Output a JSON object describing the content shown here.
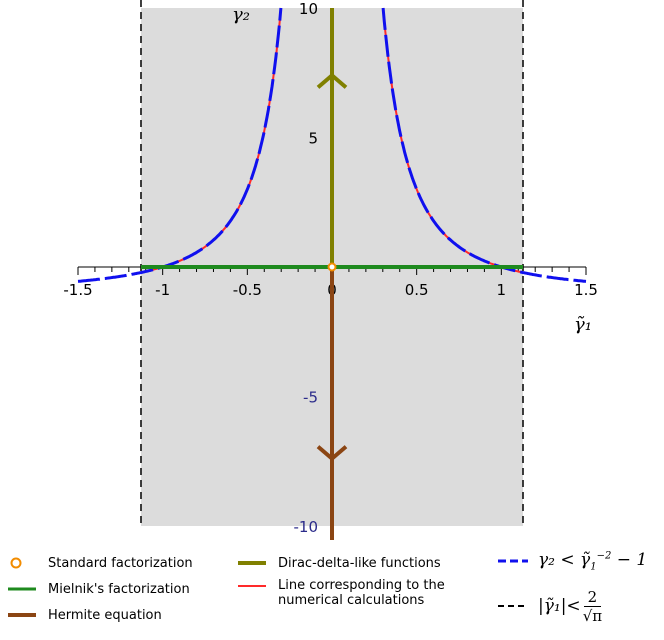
{
  "chart_data": {
    "type": "line",
    "xlim": [
      -1.5,
      1.5
    ],
    "ylim": [
      -10,
      10
    ],
    "xlabel": "γ̃₁",
    "ylabel": "γ₂",
    "xticks": [
      {
        "value": -1.5,
        "label": "-1.5"
      },
      {
        "value": -1,
        "label": "-1"
      },
      {
        "value": -0.5,
        "label": "-0.5"
      },
      {
        "value": 0,
        "label": "0"
      },
      {
        "value": 0.5,
        "label": "0.5"
      },
      {
        "value": 1,
        "label": "1"
      },
      {
        "value": 1.5,
        "label": "1.5"
      }
    ],
    "yticks": [
      {
        "value": 10,
        "label": "10"
      },
      {
        "value": 5,
        "label": "5"
      },
      {
        "value": -5,
        "label": "-5"
      },
      {
        "value": -10,
        "label": "-10"
      }
    ],
    "shaded_region": {
      "x_range": [
        -1.128,
        1.128
      ],
      "y_range": [
        -10,
        10
      ],
      "color": "#dcdcdc"
    },
    "series": [
      {
        "name": "Standard factorization",
        "kind": "point",
        "x": [
          0
        ],
        "y": [
          0
        ],
        "color": "#f28c00"
      },
      {
        "name": "Mielnik's factorization",
        "kind": "segment",
        "x": [
          -1.128,
          1.128
        ],
        "y": [
          0,
          0
        ],
        "color": "#1e8a1e"
      },
      {
        "name": "Hermite equation",
        "kind": "segment",
        "x": [
          0,
          0
        ],
        "y": [
          0,
          -10
        ],
        "arrow_at": -7.4,
        "color": "#8b4513"
      },
      {
        "name": "Dirac-delta-like functions",
        "kind": "segment",
        "x": [
          0,
          0
        ],
        "y": [
          0,
          10
        ],
        "arrow_at": 7.4,
        "color": "#808000"
      },
      {
        "name": "Line corresponding to the numerical calculations",
        "kind": "curve",
        "formula": "1/x^2 - 1",
        "x_range": [
          -1.128,
          1.128
        ],
        "color": "#ff2a2a"
      },
      {
        "name": "γ₂ < γ̃₁⁻² − 1",
        "kind": "curve",
        "formula": "1/x^2 - 1",
        "x_range": [
          -1.5,
          1.5
        ],
        "style": "dashed",
        "color": "#1010ee"
      },
      {
        "name": "|γ̃₁| < 2/√π",
        "kind": "vertical_lines",
        "x": [
          -1.128,
          1.128
        ],
        "style": "dashed",
        "color": "#000000"
      }
    ],
    "grid": false,
    "legend_placement": "bottom"
  },
  "legend": {
    "standard": "Standard factorization",
    "mielnik": "Mielnik's factorization",
    "hermite": "Hermite equation",
    "dirac": "Dirac-delta-like functions",
    "numerical_line1": "Line corresponding to the",
    "numerical_line2": "numerical calculations",
    "gamma2_lhs": "γ₂ < ",
    "gamma1_lhs": "|γ̃₁|< ",
    "gamma1_num": "2",
    "gamma1_den": "√π"
  },
  "colors": {
    "shade": "#dcdcdc",
    "blue": "#1010ee",
    "red": "#ff2a2a",
    "green": "#1e8a1e",
    "olive": "#808000",
    "brown": "#8b4513",
    "orange": "#f28c00"
  }
}
